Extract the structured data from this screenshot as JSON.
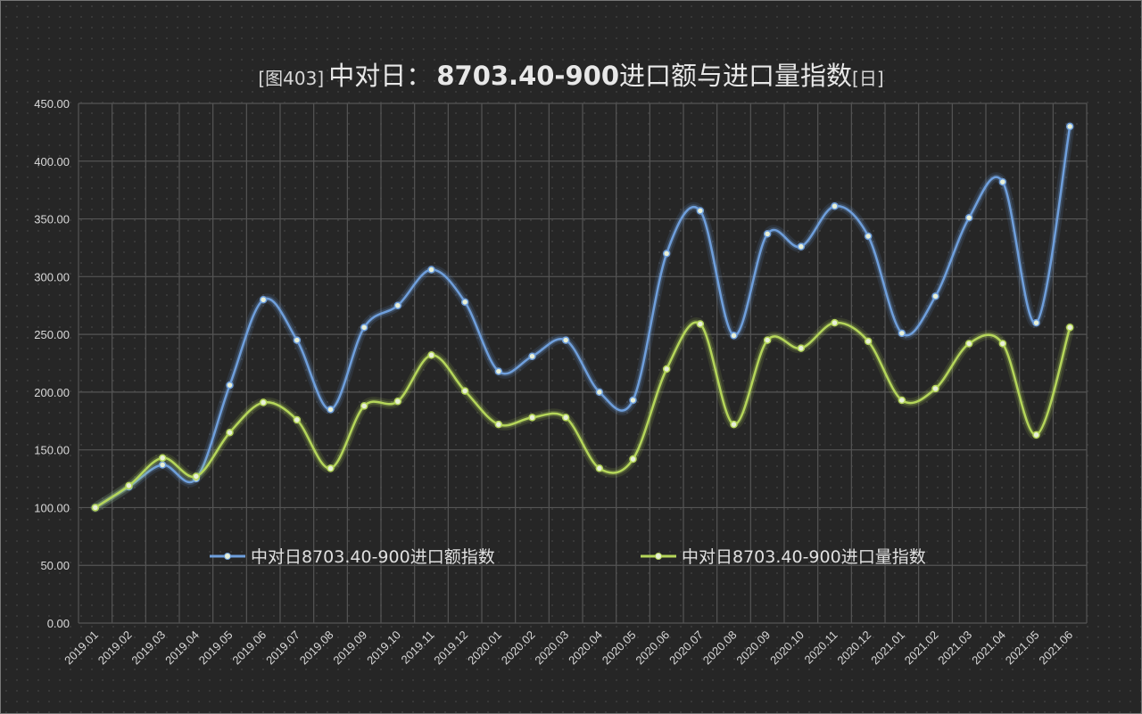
{
  "title": {
    "prefix": "[图403]",
    "country": "中对日：",
    "code": "8703.40-900",
    "rest": "进口额与进口量指数",
    "suffix": "[日]"
  },
  "chart_data": {
    "type": "line",
    "title": "[图403]中对日： 8703.40-900进口额与进口量指数[日]",
    "xlabel": "",
    "ylabel": "",
    "ylim": [
      0,
      450
    ],
    "yticks": [
      "0.00",
      "50.00",
      "100.00",
      "150.00",
      "200.00",
      "250.00",
      "300.00",
      "350.00",
      "400.00",
      "450.00"
    ],
    "grid": true,
    "legend_position": "inside-bottom",
    "categories": [
      "2019.01",
      "2019.02",
      "2019.03",
      "2019.04",
      "2019.05",
      "2019.06",
      "2019.07",
      "2019.08",
      "2019.09",
      "2019.10",
      "2019.11",
      "2019.12",
      "2020.01",
      "2020.02",
      "2020.03",
      "2020.04",
      "2020.05",
      "2020.06",
      "2020.07",
      "2020.08",
      "2020.09",
      "2020.10",
      "2020.11",
      "2020.12",
      "2021.01",
      "2021.02",
      "2021.03",
      "2021.04",
      "2021.05",
      "2021.06"
    ],
    "series": [
      {
        "name": "中对日8703.40-900进口额指数",
        "color": "#6f9fdc",
        "values": [
          100,
          118,
          137,
          125,
          206,
          280,
          245,
          185,
          256,
          275,
          306,
          278,
          218,
          231,
          245,
          200,
          193,
          320,
          357,
          249,
          337,
          326,
          361,
          335,
          251,
          283,
          351,
          382,
          260,
          430
        ]
      },
      {
        "name": "中对日8703.40-900进口量指数",
        "color": "#b5d65a",
        "values": [
          100,
          119,
          143,
          127,
          165,
          191,
          176,
          134,
          188,
          192,
          232,
          201,
          172,
          178,
          178,
          134,
          142,
          220,
          259,
          172,
          245,
          238,
          260,
          244,
          193,
          203,
          242,
          242,
          163,
          256
        ]
      }
    ]
  }
}
